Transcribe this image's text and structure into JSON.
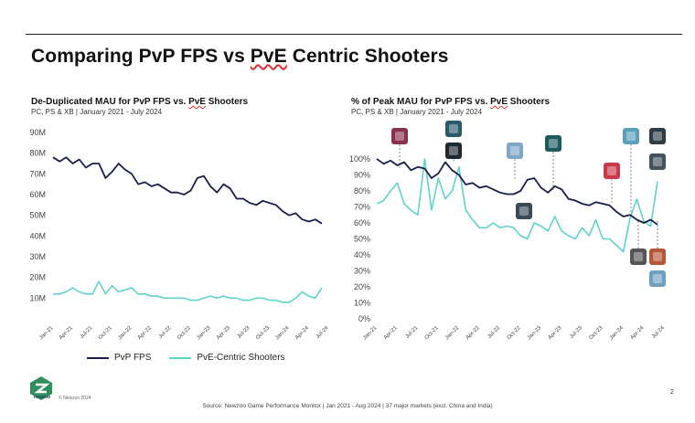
{
  "slide": {
    "title_pre": "Comparing PvP FPS vs ",
    "title_underlined": "PvE",
    "title_post": " Centric Shooters",
    "page_number": "2",
    "copyright": "© Newzoo 2024",
    "logo_text": "newzoo",
    "source": "Source: Newzoo Game Performance Monitor | Jan 2021 - Aug 2024 | 37 major markets (excl. China and India)"
  },
  "left_chart": {
    "title_pre": "De-Duplicated MAU for PvP FPS vs. ",
    "title_underlined": "PvE",
    "title_post": " Shooters",
    "subtitle": "PC, PS & XB | January 2021 - July 2024"
  },
  "right_chart": {
    "title_pre": "% of Peak MAU for PvP FPS vs. ",
    "title_underlined": "PvE",
    "title_post": " Shooters",
    "subtitle": "PC, PS & XB | January 2021 - July 2024"
  },
  "legend": {
    "items": [
      {
        "label": "PvP FPS",
        "color": "#1a1f4a"
      },
      {
        "label": "PvE-Centric Shooters",
        "color": "#5fd4c8"
      }
    ]
  },
  "chart_data": [
    {
      "type": "line",
      "title": "De-Duplicated MAU for PvP FPS vs. PvE Shooters",
      "subtitle": "PC, PS & XB | January 2021 - July 2024",
      "x_tick_labels": [
        "Jan-21",
        "Apr-21",
        "Jul-21",
        "Oct-21",
        "Jan-22",
        "Apr-22",
        "Jul-22",
        "Oct-22",
        "Jan-23",
        "Apr-23",
        "Jul-23",
        "Oct-23",
        "Jan-24",
        "Apr-24",
        "Jul-24"
      ],
      "y_tick_labels": [
        "10M",
        "20M",
        "30M",
        "40M",
        "50M",
        "60M",
        "70M",
        "80M",
        "90M"
      ],
      "ylim": [
        0,
        90
      ],
      "grid": false,
      "series": [
        {
          "name": "PvP FPS",
          "color": "#1a1f4a",
          "values": [
            78,
            76,
            78,
            75,
            77,
            73,
            75,
            75,
            68,
            71,
            75,
            72,
            70,
            65,
            66,
            64,
            65,
            63,
            61,
            61,
            60,
            62,
            68,
            69,
            64,
            61,
            65,
            63,
            58,
            58,
            56,
            55,
            57,
            56,
            55,
            52,
            50,
            51,
            48,
            47,
            48,
            46
          ]
        },
        {
          "name": "PvE-Centric Shooters",
          "color": "#5fd4c8",
          "values": [
            12,
            12,
            13,
            15,
            13,
            12,
            12,
            18,
            12,
            16,
            13,
            14,
            15,
            12,
            12,
            11,
            11,
            10,
            10,
            10,
            10,
            9,
            9,
            10,
            11,
            10,
            11,
            10,
            10,
            9,
            9,
            10,
            10,
            9,
            9,
            8,
            8,
            10,
            13,
            11,
            10,
            15
          ]
        }
      ]
    },
    {
      "type": "line",
      "title": "% of Peak MAU for PvP FPS vs. PvE Shooters",
      "subtitle": "PC, PS & XB | January 2021 - July 2024",
      "x_tick_labels": [
        "Jan-21",
        "Apr-21",
        "Jul-21",
        "Oct-21",
        "Jan-22",
        "Apr-22",
        "Jul-22",
        "Oct-22",
        "Jan-23",
        "Apr-23",
        "Jul-23",
        "Oct-23",
        "Jan-24",
        "Apr-24",
        "Jul-24"
      ],
      "y_tick_labels": [
        "0%",
        "10%",
        "20%",
        "30%",
        "40%",
        "50%",
        "60%",
        "70%",
        "80%",
        "90%",
        "100%"
      ],
      "ylim": [
        0,
        100
      ],
      "grid": false,
      "series": [
        {
          "name": "PvP FPS",
          "color": "#1a1f4a",
          "values": [
            100,
            97,
            99,
            96,
            98,
            93,
            95,
            94,
            88,
            91,
            98,
            93,
            90,
            84,
            85,
            82,
            83,
            81,
            79,
            78,
            78,
            80,
            87,
            88,
            82,
            79,
            83,
            81,
            75,
            74,
            72,
            71,
            73,
            72,
            71,
            67,
            64,
            65,
            62,
            60,
            62,
            59
          ]
        },
        {
          "name": "PvE-Centric Shooters",
          "color": "#5fd4c8",
          "values": [
            72,
            74,
            80,
            85,
            72,
            68,
            65,
            100,
            68,
            88,
            75,
            80,
            95,
            68,
            62,
            57,
            57,
            60,
            57,
            58,
            57,
            52,
            50,
            60,
            58,
            55,
            64,
            55,
            52,
            50,
            57,
            52,
            62,
            50,
            50,
            46,
            42,
            63,
            75,
            61,
            58,
            86
          ]
        }
      ]
    }
  ],
  "game_icons": [
    {
      "name": "game-cover-icon-1",
      "color": "#8a3050"
    },
    {
      "name": "game-cover-icon-2",
      "color": "#2a5a6a"
    },
    {
      "name": "game-cover-icon-3",
      "color": "#1f2a30"
    },
    {
      "name": "game-cover-icon-4",
      "color": "#7fa7c6"
    },
    {
      "name": "game-cover-icon-5",
      "color": "#3a4a55"
    },
    {
      "name": "game-cover-icon-6",
      "color": "#1d5a5e"
    },
    {
      "name": "game-cover-icon-7",
      "color": "#c83a4a"
    },
    {
      "name": "game-cover-icon-8",
      "color": "#5aa0b8"
    },
    {
      "name": "game-cover-icon-9",
      "color": "#2e3c44"
    },
    {
      "name": "game-cover-icon-10",
      "color": "#44525c"
    },
    {
      "name": "game-cover-icon-11",
      "color": "#555555"
    },
    {
      "name": "game-cover-icon-12",
      "color": "#b3563a"
    },
    {
      "name": "game-cover-icon-13",
      "color": "#6fa0c0"
    }
  ]
}
